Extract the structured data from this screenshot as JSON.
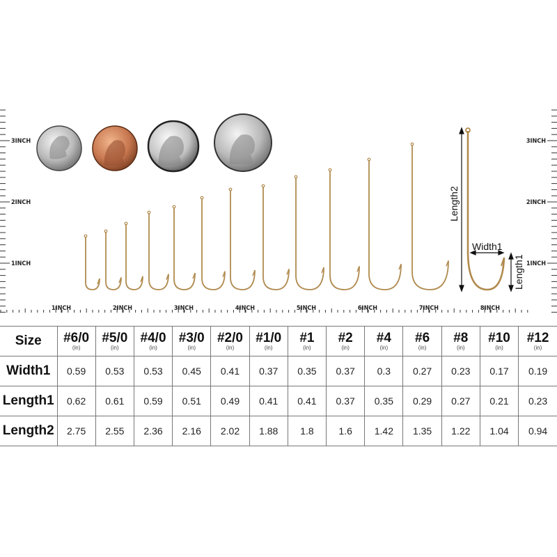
{
  "ruler": {
    "horizontal_labels": [
      "1INCH",
      "2INCH",
      "3INCH",
      "4INCH",
      "5INCH",
      "6INCH",
      "7INCH",
      "8INCH"
    ],
    "vertical_labels": [
      "3INCH",
      "2INCH",
      "1INCH"
    ]
  },
  "coins": [
    "dime",
    "penny",
    "nickel",
    "quarter"
  ],
  "diagram": {
    "length2": "Length2",
    "width1": "Width1",
    "length1": "Length1"
  },
  "hook_color": "#b08a4e",
  "table": {
    "size_label": "Size",
    "unit": "(in)",
    "sizes": [
      "#6/0",
      "#5/0",
      "#4/0",
      "#3/0",
      "#2/0",
      "#1/0",
      "#1",
      "#2",
      "#4",
      "#6",
      "#8",
      "#10",
      "#12"
    ],
    "rows": [
      {
        "label": "Width1",
        "values": [
          "0.59",
          "0.53",
          "0.53",
          "0.45",
          "0.41",
          "0.37",
          "0.35",
          "0.37",
          "0.3",
          "0.27",
          "0.23",
          "0.17",
          "0.19"
        ]
      },
      {
        "label": "Length1",
        "values": [
          "0.62",
          "0.61",
          "0.59",
          "0.51",
          "0.49",
          "0.41",
          "0.41",
          "0.37",
          "0.35",
          "0.29",
          "0.27",
          "0.21",
          "0.23"
        ]
      },
      {
        "label": "Length2",
        "values": [
          "2.75",
          "2.55",
          "2.36",
          "2.16",
          "2.02",
          "1.88",
          "1.8",
          "1.6",
          "1.42",
          "1.35",
          "1.22",
          "1.04",
          "0.94"
        ]
      }
    ]
  }
}
